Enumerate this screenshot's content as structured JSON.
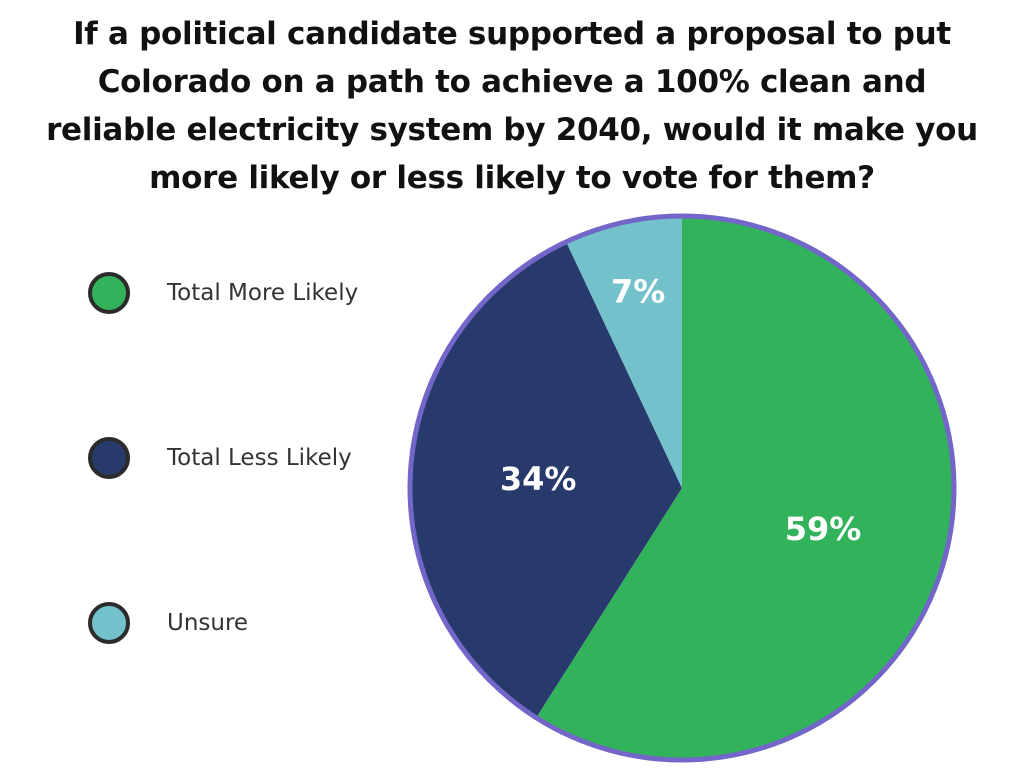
{
  "title": "If a political candidate supported a proposal to put Colorado on a path to achieve a 100% clean and reliable electricity system by 2040, would it make you more likely or less likely to vote for them?",
  "chart_data": {
    "type": "pie",
    "title": "If a political candidate supported a proposal to put Colorado on a path to achieve a 100% clean and reliable electricity system by 2040, would it make you more likely or less likely to vote for them?",
    "slices": [
      {
        "label": "Total More Likely",
        "value": 59,
        "display": "59%",
        "color": "#32b25a"
      },
      {
        "label": "Total Less Likely",
        "value": 34,
        "display": "34%",
        "color": "#283a6c"
      },
      {
        "label": "Unsure",
        "value": 7,
        "display": "7%",
        "color": "#73c2cb"
      }
    ],
    "legend_position": "left",
    "outline_color": "#7266c8"
  }
}
